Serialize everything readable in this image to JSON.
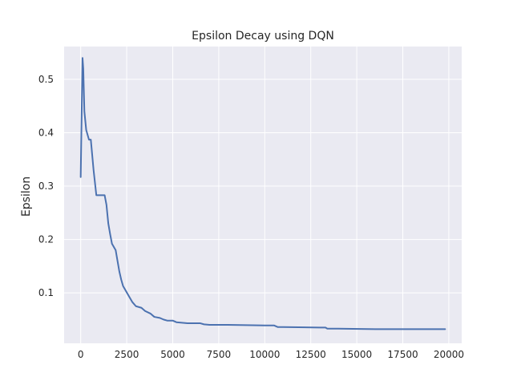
{
  "chart_data": {
    "type": "line",
    "title": "Epsilon Decay using DQN",
    "xlabel": "",
    "ylabel": "Epsilon",
    "xlim": [
      -900,
      20700
    ],
    "ylim": [
      0.0055,
      0.5615
    ],
    "xticks": [
      0,
      2500,
      5000,
      7500,
      10000,
      12500,
      15000,
      17500,
      20000
    ],
    "xtick_labels": [
      "0",
      "2500",
      "5000",
      "7500",
      "10000",
      "12500",
      "15000",
      "17500",
      "20000"
    ],
    "yticks": [
      0.1,
      0.2,
      0.3,
      0.4,
      0.5
    ],
    "ytick_labels": [
      "0.1",
      "0.2",
      "0.3",
      "0.4",
      "0.5"
    ],
    "grid": true,
    "background": "#eaeaf2",
    "line_color": "#4c72b0",
    "series": [
      {
        "name": "",
        "x": [
          0,
          100,
          140,
          200,
          300,
          450,
          550,
          700,
          850,
          1300,
          1400,
          1500,
          1600,
          1700,
          1900,
          2000,
          2100,
          2200,
          2300,
          2400,
          2600,
          2800,
          3000,
          3300,
          3500,
          3800,
          4000,
          4300,
          4500,
          4700,
          5000,
          5200,
          5500,
          5800,
          6000,
          6500,
          6700,
          7000,
          8000,
          10000,
          10500,
          10700,
          11000,
          13000,
          13300,
          13400,
          14000,
          16000,
          18000,
          19800
        ],
        "y": [
          0.317,
          0.54,
          0.52,
          0.44,
          0.405,
          0.387,
          0.387,
          0.33,
          0.283,
          0.283,
          0.265,
          0.23,
          0.21,
          0.192,
          0.18,
          0.16,
          0.14,
          0.125,
          0.113,
          0.107,
          0.095,
          0.083,
          0.075,
          0.072,
          0.066,
          0.061,
          0.055,
          0.053,
          0.05,
          0.048,
          0.048,
          0.045,
          0.044,
          0.043,
          0.043,
          0.043,
          0.041,
          0.04,
          0.04,
          0.039,
          0.039,
          0.036,
          0.036,
          0.035,
          0.035,
          0.033,
          0.033,
          0.032,
          0.032,
          0.032
        ]
      }
    ]
  }
}
